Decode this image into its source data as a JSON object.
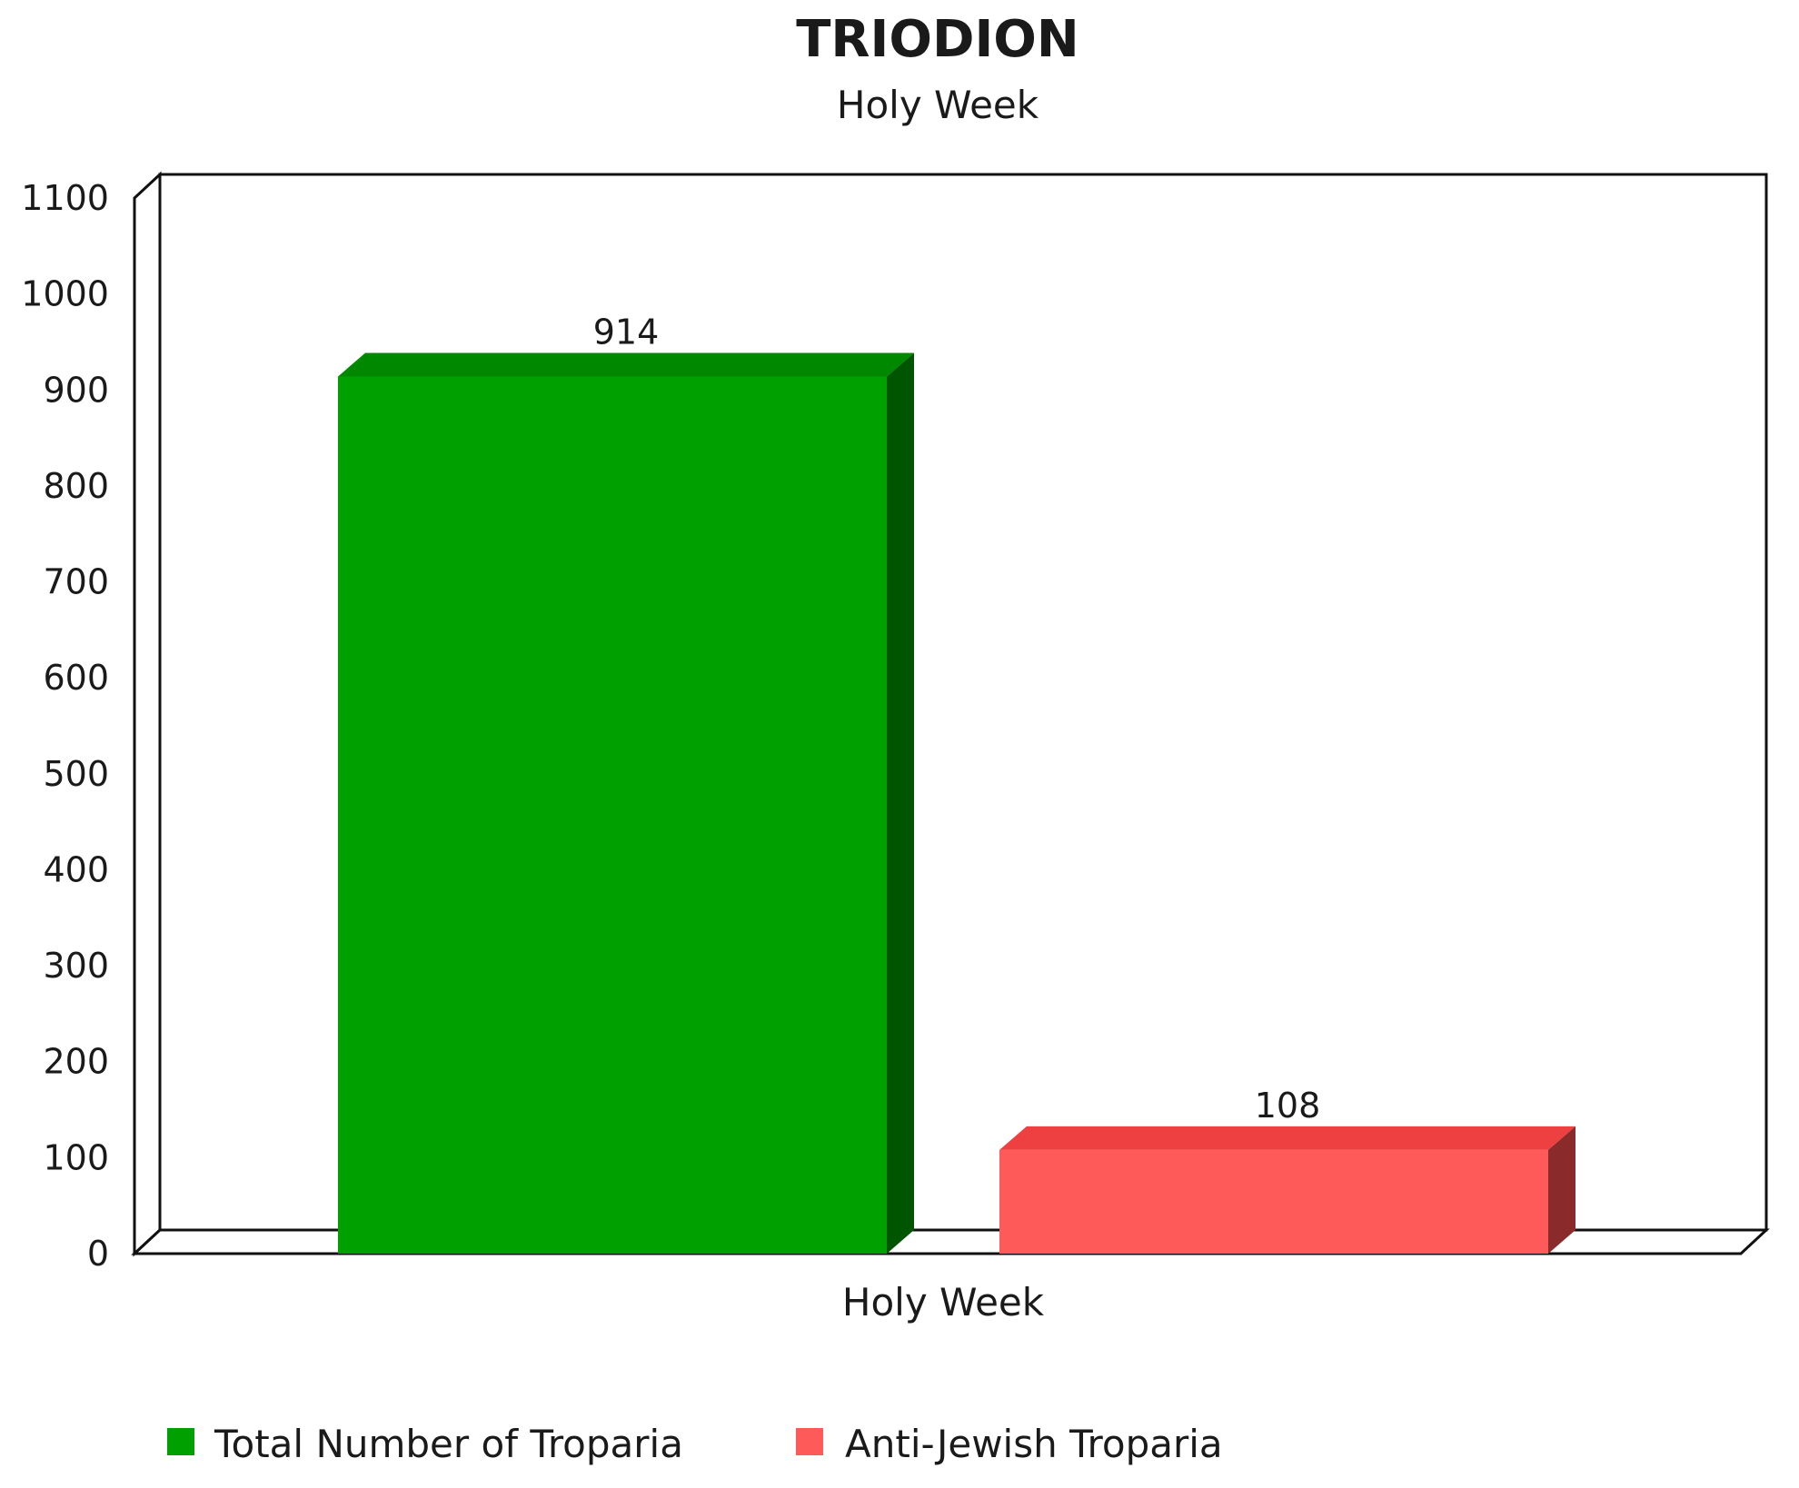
{
  "chart_data": {
    "type": "bar",
    "title": "TRIODION",
    "subtitle": "Holy Week",
    "categories": [
      "Holy Week"
    ],
    "series": [
      {
        "name": "Total Number of Troparia",
        "values": [
          914
        ],
        "color": "#00a000",
        "top_color": "#008800",
        "side_color": "#005500"
      },
      {
        "name": "Anti-Jewish Troparia",
        "values": [
          108
        ],
        "color": "#ff5a5a",
        "top_color": "#ee4040",
        "side_color": "#8b2a2a"
      }
    ],
    "data_labels": [
      "914",
      "108"
    ],
    "ylim": [
      0,
      1100
    ],
    "yticks": [
      "0",
      "100",
      "200",
      "300",
      "400",
      "500",
      "600",
      "700",
      "800",
      "900",
      "1000",
      "1100"
    ],
    "grid": false,
    "style": "3d",
    "legend_position": "bottom-left"
  }
}
